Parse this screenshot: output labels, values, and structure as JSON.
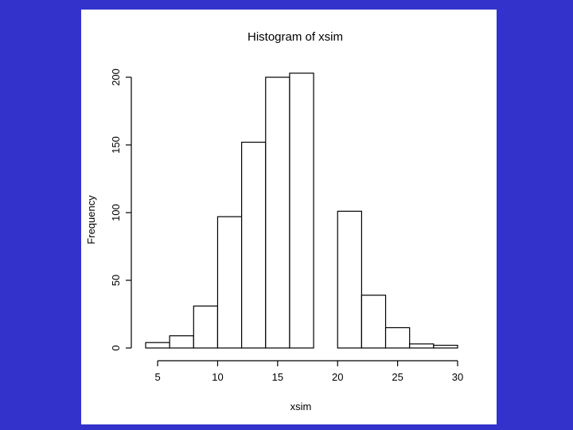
{
  "slide": {
    "background_color": "#3333cc",
    "panel_color": "#ffffff"
  },
  "chart_data": {
    "type": "bar",
    "title": "Histogram of xsim",
    "xlabel": "xsim",
    "ylabel": "Frequency",
    "bin_edges": [
      4,
      6,
      8,
      10,
      12,
      14,
      16,
      18,
      20,
      22,
      24,
      26,
      28,
      30
    ],
    "values": [
      4,
      9,
      31,
      97,
      152,
      200,
      203,
      0,
      101,
      39,
      15,
      3,
      2
    ],
    "xlim": [
      4,
      30
    ],
    "ylim": [
      0,
      200
    ],
    "x_ticks": [
      5,
      10,
      15,
      20,
      25,
      30
    ],
    "y_ticks": [
      0,
      50,
      100,
      150,
      200
    ],
    "grid": false,
    "legend": "none",
    "bar_fill": "#ffffff",
    "line_color": "#000000"
  }
}
